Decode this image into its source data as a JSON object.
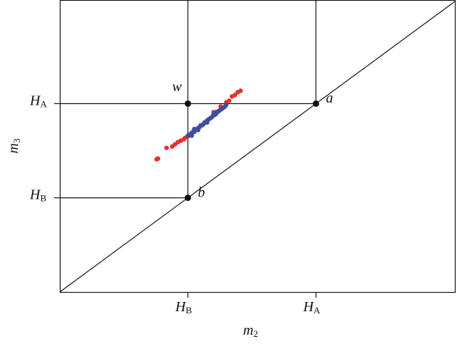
{
  "chart_data": {
    "type": "scatter",
    "x_label": {
      "text": "m",
      "sub": "2"
    },
    "y_label": {
      "text": "m",
      "sub": "3"
    },
    "xlim": [
      0,
      3.09
    ],
    "ylim": [
      0,
      3.1
    ],
    "xticks": [
      {
        "value": 1,
        "label": "H",
        "sub": "B"
      },
      {
        "value": 2,
        "label": "H",
        "sub": "A"
      }
    ],
    "yticks": [
      {
        "value": 1,
        "label": "H",
        "sub": "B"
      },
      {
        "value": 2,
        "label": "H",
        "sub": "A"
      }
    ],
    "series": [
      {
        "color": "#e8312a",
        "x": [
          0.756,
          0.767,
          0.833,
          0.878,
          0.9,
          0.922,
          0.944,
          0.967,
          0.978,
          1.0,
          1.2,
          1.256,
          1.3,
          1.322,
          1.344,
          1.367,
          1.389,
          1.411
        ],
        "values": [
          1.409,
          1.417,
          1.53,
          1.545,
          1.568,
          1.591,
          1.606,
          1.621,
          1.636,
          1.652,
          1.909,
          1.97,
          2.015,
          2.03,
          2.076,
          2.091,
          2.121,
          2.136
        ]
      },
      {
        "color": "#3e4f9e",
        "x": [
          1.0,
          1.01,
          1.02,
          1.03,
          1.04,
          1.05,
          1.06,
          1.07,
          1.08,
          1.09,
          1.1,
          1.11,
          1.12,
          1.13,
          1.14,
          1.15,
          1.16,
          1.17,
          1.18,
          1.19,
          1.2,
          1.21,
          1.22,
          1.23,
          1.24,
          1.25,
          1.26,
          1.27,
          1.28,
          1.29,
          1.3,
          1.03,
          1.08,
          1.15,
          1.22,
          1.05
        ],
        "values": [
          1.66,
          1.67,
          1.67,
          1.69,
          1.7,
          1.7,
          1.72,
          1.73,
          1.74,
          1.75,
          1.77,
          1.77,
          1.78,
          1.8,
          1.8,
          1.82,
          1.83,
          1.84,
          1.85,
          1.86,
          1.88,
          1.88,
          1.89,
          1.91,
          1.92,
          1.93,
          1.94,
          1.95,
          1.96,
          1.97,
          1.99,
          1.66,
          1.72,
          1.8,
          1.91,
          1.73
        ]
      }
    ],
    "points": [
      {
        "label": "w",
        "x": 1,
        "y": 2
      },
      {
        "label": "a",
        "x": 2,
        "y": 2
      },
      {
        "label": "b",
        "x": 1,
        "y": 1
      }
    ]
  }
}
